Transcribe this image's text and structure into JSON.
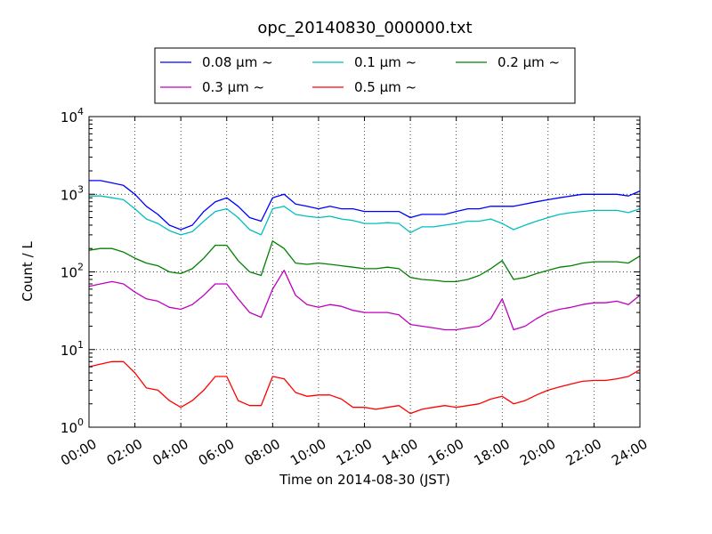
{
  "chart_data": {
    "type": "line",
    "title": "opc_20140830_000000.txt",
    "xlabel": "Time on 2014-08-30 (JST)",
    "ylabel": "Count / L",
    "y_scale": "log",
    "ylim": [
      1,
      10000
    ],
    "xlim": [
      0,
      24
    ],
    "grid": true,
    "legend_position": "top-center, above plot",
    "x_ticks": [
      {
        "value": 0,
        "label": "00:00"
      },
      {
        "value": 2,
        "label": "02:00"
      },
      {
        "value": 4,
        "label": "04:00"
      },
      {
        "value": 6,
        "label": "06:00"
      },
      {
        "value": 8,
        "label": "08:00"
      },
      {
        "value": 10,
        "label": "10:00"
      },
      {
        "value": 12,
        "label": "12:00"
      },
      {
        "value": 14,
        "label": "14:00"
      },
      {
        "value": 16,
        "label": "16:00"
      },
      {
        "value": 18,
        "label": "18:00"
      },
      {
        "value": 20,
        "label": "20:00"
      },
      {
        "value": 22,
        "label": "22:00"
      },
      {
        "value": 24,
        "label": "24:00"
      }
    ],
    "y_ticks": [
      {
        "value": 1,
        "base": "10",
        "exp": "0"
      },
      {
        "value": 10,
        "base": "10",
        "exp": "1"
      },
      {
        "value": 100,
        "base": "10",
        "exp": "2"
      },
      {
        "value": 1000,
        "base": "10",
        "exp": "3"
      },
      {
        "value": 10000,
        "base": "10",
        "exp": "4"
      }
    ],
    "x_hours": [
      0,
      0.5,
      1,
      1.5,
      2,
      2.5,
      3,
      3.5,
      4,
      4.5,
      5,
      5.5,
      6,
      6.5,
      7,
      7.5,
      8,
      8.5,
      9,
      9.5,
      10,
      10.5,
      11,
      11.5,
      12,
      12.5,
      13,
      13.5,
      14,
      14.5,
      15,
      15.5,
      16,
      16.5,
      17,
      17.5,
      18,
      18.5,
      19,
      19.5,
      20,
      20.5,
      21,
      21.5,
      22,
      22.5,
      23,
      23.5,
      24
    ],
    "series": [
      {
        "name": "0.08 μm ~",
        "color": "#0000ff",
        "values": [
          1500,
          1500,
          1400,
          1300,
          1000,
          700,
          550,
          400,
          350,
          400,
          600,
          800,
          900,
          700,
          500,
          450,
          900,
          1000,
          750,
          700,
          650,
          700,
          650,
          650,
          600,
          600,
          600,
          600,
          500,
          550,
          550,
          550,
          600,
          650,
          650,
          700,
          700,
          700,
          750,
          800,
          850,
          900,
          950,
          1000,
          1000,
          1000,
          1000,
          950,
          1100
        ]
      },
      {
        "name": "0.1 μm ~",
        "color": "#00bfbf",
        "values": [
          950,
          950,
          900,
          850,
          650,
          480,
          420,
          340,
          300,
          330,
          450,
          600,
          650,
          500,
          350,
          300,
          650,
          700,
          550,
          520,
          500,
          520,
          480,
          460,
          420,
          420,
          430,
          420,
          320,
          380,
          380,
          400,
          420,
          450,
          450,
          480,
          420,
          350,
          400,
          450,
          500,
          550,
          580,
          600,
          620,
          620,
          620,
          580,
          650
        ]
      },
      {
        "name": "0.2 μm ~",
        "color": "#008000",
        "values": [
          190,
          200,
          200,
          180,
          150,
          130,
          120,
          100,
          95,
          110,
          150,
          220,
          220,
          140,
          100,
          90,
          250,
          200,
          130,
          125,
          130,
          125,
          120,
          115,
          110,
          110,
          115,
          110,
          85,
          80,
          78,
          75,
          75,
          80,
          90,
          110,
          140,
          80,
          85,
          95,
          105,
          115,
          120,
          130,
          135,
          135,
          135,
          130,
          160
        ]
      },
      {
        "name": "0.3 μm ~",
        "color": "#bf00bf",
        "values": [
          65,
          70,
          75,
          70,
          55,
          45,
          42,
          35,
          33,
          38,
          50,
          70,
          70,
          45,
          30,
          26,
          60,
          105,
          50,
          38,
          35,
          38,
          36,
          32,
          30,
          30,
          30,
          28,
          21,
          20,
          19,
          18,
          18,
          19,
          20,
          25,
          45,
          18,
          20,
          25,
          30,
          33,
          35,
          38,
          40,
          40,
          42,
          38,
          50
        ]
      },
      {
        "name": "0.5 μm ~",
        "color": "#ff0000",
        "values": [
          6,
          6.5,
          7,
          7,
          5,
          3.2,
          3,
          2.2,
          1.8,
          2.2,
          3,
          4.5,
          4.5,
          2.2,
          1.9,
          1.9,
          4.5,
          4.2,
          2.8,
          2.5,
          2.6,
          2.6,
          2.3,
          1.8,
          1.8,
          1.7,
          1.8,
          1.9,
          1.5,
          1.7,
          1.8,
          1.9,
          1.8,
          1.9,
          2,
          2.3,
          2.5,
          2,
          2.2,
          2.6,
          3,
          3.3,
          3.6,
          3.9,
          4,
          4,
          4.2,
          4.5,
          5.5
        ]
      }
    ]
  }
}
